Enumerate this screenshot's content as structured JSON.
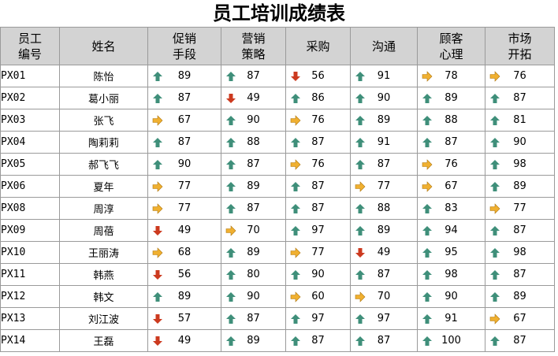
{
  "title": "员工培训成绩表",
  "headers": [
    [
      "员工",
      "编号"
    ],
    [
      "姓名"
    ],
    [
      "促销",
      "手段"
    ],
    [
      "营销",
      "策略"
    ],
    [
      "采购"
    ],
    [
      "沟通"
    ],
    [
      "顾客",
      "心理"
    ],
    [
      "市场",
      "开拓"
    ]
  ],
  "icon_colors": {
    "up": "#3f8f7a",
    "side": "#f0b030",
    "down": "#cc3a1f"
  },
  "rows": [
    {
      "id": "PX01",
      "name": "陈怡",
      "scores": [
        {
          "v": "89",
          "i": "up"
        },
        {
          "v": "87",
          "i": "up"
        },
        {
          "v": "56",
          "i": "down"
        },
        {
          "v": "91",
          "i": "up"
        },
        {
          "v": "78",
          "i": "side"
        },
        {
          "v": "76",
          "i": "side"
        }
      ]
    },
    {
      "id": "PX02",
      "name": "葛小丽",
      "scores": [
        {
          "v": "87",
          "i": "up"
        },
        {
          "v": "49",
          "i": "down"
        },
        {
          "v": "86",
          "i": "up"
        },
        {
          "v": "90",
          "i": "up"
        },
        {
          "v": "89",
          "i": "up"
        },
        {
          "v": "87",
          "i": "up"
        }
      ]
    },
    {
      "id": "PX03",
      "name": "张飞",
      "scores": [
        {
          "v": "67",
          "i": "side"
        },
        {
          "v": "90",
          "i": "up"
        },
        {
          "v": "76",
          "i": "side"
        },
        {
          "v": "89",
          "i": "up"
        },
        {
          "v": "88",
          "i": "up"
        },
        {
          "v": "81",
          "i": "up"
        }
      ]
    },
    {
      "id": "PX04",
      "name": "陶莉莉",
      "scores": [
        {
          "v": "87",
          "i": "up"
        },
        {
          "v": "88",
          "i": "up"
        },
        {
          "v": "87",
          "i": "up"
        },
        {
          "v": "91",
          "i": "up"
        },
        {
          "v": "87",
          "i": "up"
        },
        {
          "v": "90",
          "i": "up"
        }
      ]
    },
    {
      "id": "PX05",
      "name": "郝飞飞",
      "scores": [
        {
          "v": "90",
          "i": "up"
        },
        {
          "v": "87",
          "i": "up"
        },
        {
          "v": "76",
          "i": "side"
        },
        {
          "v": "87",
          "i": "up"
        },
        {
          "v": "76",
          "i": "side"
        },
        {
          "v": "98",
          "i": "up"
        }
      ]
    },
    {
      "id": "PX06",
      "name": "夏年",
      "scores": [
        {
          "v": "77",
          "i": "side"
        },
        {
          "v": "89",
          "i": "up"
        },
        {
          "v": "87",
          "i": "up"
        },
        {
          "v": "77",
          "i": "side"
        },
        {
          "v": "67",
          "i": "side"
        },
        {
          "v": "89",
          "i": "up"
        }
      ]
    },
    {
      "id": "PX08",
      "name": "周淳",
      "scores": [
        {
          "v": "77",
          "i": "side"
        },
        {
          "v": "87",
          "i": "up"
        },
        {
          "v": "87",
          "i": "up"
        },
        {
          "v": "88",
          "i": "up"
        },
        {
          "v": "83",
          "i": "up"
        },
        {
          "v": "77",
          "i": "side"
        }
      ]
    },
    {
      "id": "PX09",
      "name": "周蓓",
      "scores": [
        {
          "v": "49",
          "i": "down"
        },
        {
          "v": "70",
          "i": "side"
        },
        {
          "v": "97",
          "i": "up"
        },
        {
          "v": "89",
          "i": "up"
        },
        {
          "v": "94",
          "i": "up"
        },
        {
          "v": "87",
          "i": "up"
        }
      ]
    },
    {
      "id": "PX10",
      "name": "王丽涛",
      "scores": [
        {
          "v": "68",
          "i": "side"
        },
        {
          "v": "89",
          "i": "up"
        },
        {
          "v": "77",
          "i": "side"
        },
        {
          "v": "49",
          "i": "down"
        },
        {
          "v": "95",
          "i": "up"
        },
        {
          "v": "98",
          "i": "up"
        }
      ]
    },
    {
      "id": "PX11",
      "name": "韩燕",
      "scores": [
        {
          "v": "56",
          "i": "down"
        },
        {
          "v": "80",
          "i": "up"
        },
        {
          "v": "90",
          "i": "up"
        },
        {
          "v": "87",
          "i": "up"
        },
        {
          "v": "98",
          "i": "up"
        },
        {
          "v": "87",
          "i": "up"
        }
      ]
    },
    {
      "id": "PX12",
      "name": "韩文",
      "scores": [
        {
          "v": "89",
          "i": "up"
        },
        {
          "v": "90",
          "i": "up"
        },
        {
          "v": "60",
          "i": "side"
        },
        {
          "v": "70",
          "i": "side"
        },
        {
          "v": "90",
          "i": "up"
        },
        {
          "v": "89",
          "i": "up"
        }
      ]
    },
    {
      "id": "PX13",
      "name": "刘江波",
      "scores": [
        {
          "v": "57",
          "i": "down"
        },
        {
          "v": "87",
          "i": "up"
        },
        {
          "v": "97",
          "i": "up"
        },
        {
          "v": "97",
          "i": "up"
        },
        {
          "v": "91",
          "i": "up"
        },
        {
          "v": "67",
          "i": "side"
        }
      ]
    },
    {
      "id": "PX14",
      "name": "王磊",
      "scores": [
        {
          "v": "49",
          "i": "down"
        },
        {
          "v": "89",
          "i": "up"
        },
        {
          "v": "87",
          "i": "up"
        },
        {
          "v": "87",
          "i": "up"
        },
        {
          "v": "100",
          "i": "up"
        },
        {
          "v": "87",
          "i": "up"
        }
      ]
    }
  ]
}
